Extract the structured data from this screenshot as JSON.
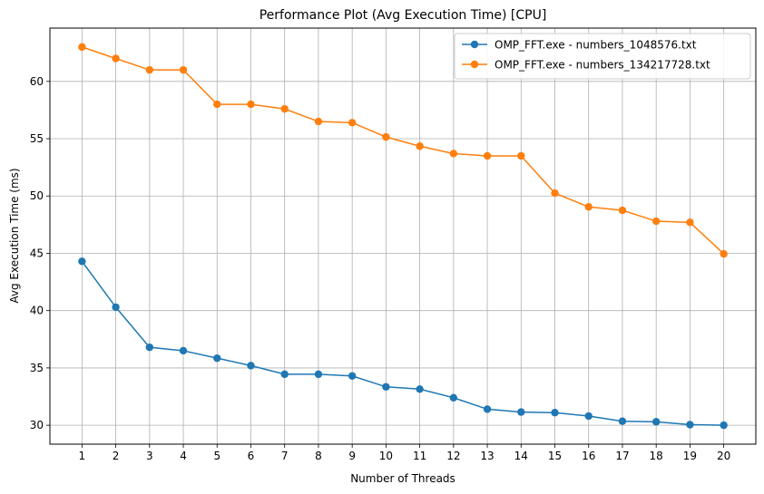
{
  "chart_data": {
    "type": "line",
    "title": "Performance Plot (Avg Execution Time) [CPU]",
    "xlabel": "Number of Threads",
    "ylabel": "Avg Execution Time (ms)",
    "x": [
      1,
      2,
      3,
      4,
      5,
      6,
      7,
      8,
      9,
      10,
      11,
      12,
      13,
      14,
      15,
      16,
      17,
      18,
      19,
      20
    ],
    "xticks": [
      "1",
      "2",
      "3",
      "4",
      "5",
      "6",
      "7",
      "8",
      "9",
      "10",
      "11",
      "12",
      "13",
      "14",
      "15",
      "16",
      "17",
      "18",
      "19",
      "20"
    ],
    "yticks": [
      "30",
      "35",
      "40",
      "45",
      "50",
      "55",
      "60"
    ],
    "ylim": [
      28.35,
      64.65
    ],
    "xlim": [
      0.05,
      20.95
    ],
    "grid": true,
    "legend_position": "top-right",
    "series": [
      {
        "name": "OMP_FFT.exe - numbers_1048576.txt",
        "color": "#1f77b4",
        "values": [
          44.3,
          40.3,
          36.8,
          36.5,
          35.85,
          35.2,
          34.45,
          34.45,
          34.3,
          33.35,
          33.15,
          32.4,
          31.4,
          31.15,
          31.1,
          30.8,
          30.35,
          30.3,
          30.05,
          30.0
        ]
      },
      {
        "name": "OMP_FFT.exe - numbers_134217728.txt",
        "color": "#ff7f0e",
        "values": [
          63.0,
          62.0,
          61.0,
          61.0,
          58.0,
          58.0,
          57.6,
          56.5,
          56.4,
          55.15,
          54.35,
          53.7,
          53.5,
          53.5,
          50.25,
          49.05,
          48.75,
          47.8,
          47.7,
          44.95
        ]
      }
    ]
  }
}
